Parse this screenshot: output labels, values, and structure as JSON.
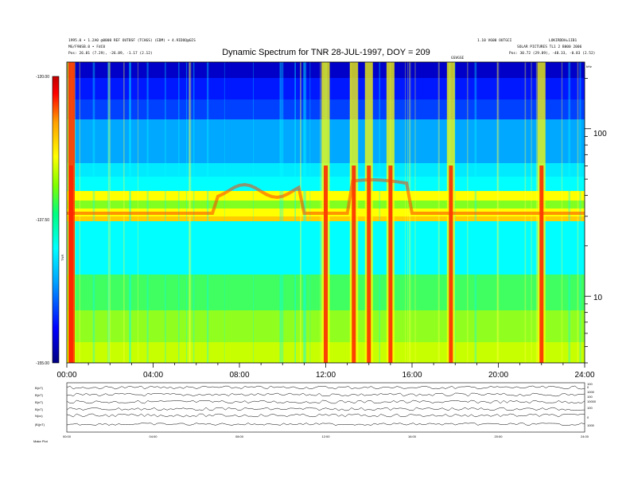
{
  "header": {
    "left_line1": "1995.0 • 1.2A0 @0000  REF OUTBSF (TCHGS) (EDM) • 4.9IDOQ@GIS",
    "left_line2": "MG/F90SB.0 • FdC0",
    "left_line3": "Pos:   26.81 (7.29), -26.89, -1.17 (2.12)",
    "right_line1": "1.10 V600 OUTGCI",
    "right_line2": "LOKIRDDH=1IB1",
    "right_line3": "SOLAR PICTURES  TL1  2 B000 2006",
    "right_line4": "Pos:   30.72 (29.89), -48.33, -0.83 (2.52)",
    "mid_label": "GSVGSE"
  },
  "chart_data": {
    "type": "heatmap",
    "title": "Dynamic Spectrum for TNR 28-JUL-1997, DOY = 209",
    "x_tick_labels": [
      "00:00",
      "04:00",
      "08:00",
      "12:00",
      "16:00",
      "20:00",
      "24:00"
    ],
    "x_range_hours": [
      0,
      24
    ],
    "y_scale": "log",
    "y_units": "kHz",
    "y_range_khz": [
      4,
      250
    ],
    "y_tick_labels": [
      "100",
      "10"
    ],
    "colorbar": {
      "tick_labels": [
        "-120.00",
        "-137.50",
        "-155.00"
      ],
      "range": [
        -155,
        -120
      ],
      "label": "TNR",
      "colors": [
        "#000080",
        "#0000ff",
        "#00a0ff",
        "#00ffff",
        "#00ff80",
        "#80ff00",
        "#ffff00",
        "#ffa000",
        "#ff0000",
        "#c00000"
      ]
    },
    "strong_bursts_hours": [
      0.2,
      12.0,
      13.3,
      14.0,
      15.0,
      17.8,
      22.0
    ]
  },
  "bottom_panel": {
    "row_labels": [
      "B(nT)",
      "B(nT)",
      "B(nT)",
      "B(nT)",
      "N(cc)",
      "|B|(nT)"
    ],
    "right_ticks": [
      "100",
      "0",
      "1000",
      "100",
      "10000",
      "100",
      "0",
      "1000"
    ],
    "x_tick_labels": [
      "00:00",
      "04:00",
      "08:00",
      "12:00",
      "16:00",
      "20:00",
      "24:00"
    ],
    "footer": "Make Plot"
  }
}
